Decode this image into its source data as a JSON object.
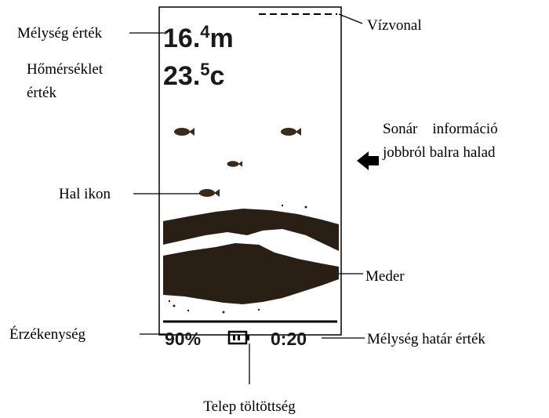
{
  "screen": {
    "depth": {
      "main": "16.",
      "sup": "4",
      "unit": "m"
    },
    "temperature": {
      "main": "23.",
      "sup": "5",
      "unit": "c"
    },
    "sensitivity": "90%",
    "depth_range": "0:20"
  },
  "labels": {
    "depth_value": "Mélység érték",
    "water_line": "Vízvonal",
    "temperature_value": [
      "Hőmérséklet",
      "érték"
    ],
    "sonar_info": [
      "Sonár    információ",
      "jobbról balra halad"
    ],
    "fish_icon": "Hal ikon",
    "bed": "Meder",
    "sensitivity": "Érzékenység",
    "depth_limit": "Mélység határ érték",
    "battery": "Telep töltöttség"
  }
}
